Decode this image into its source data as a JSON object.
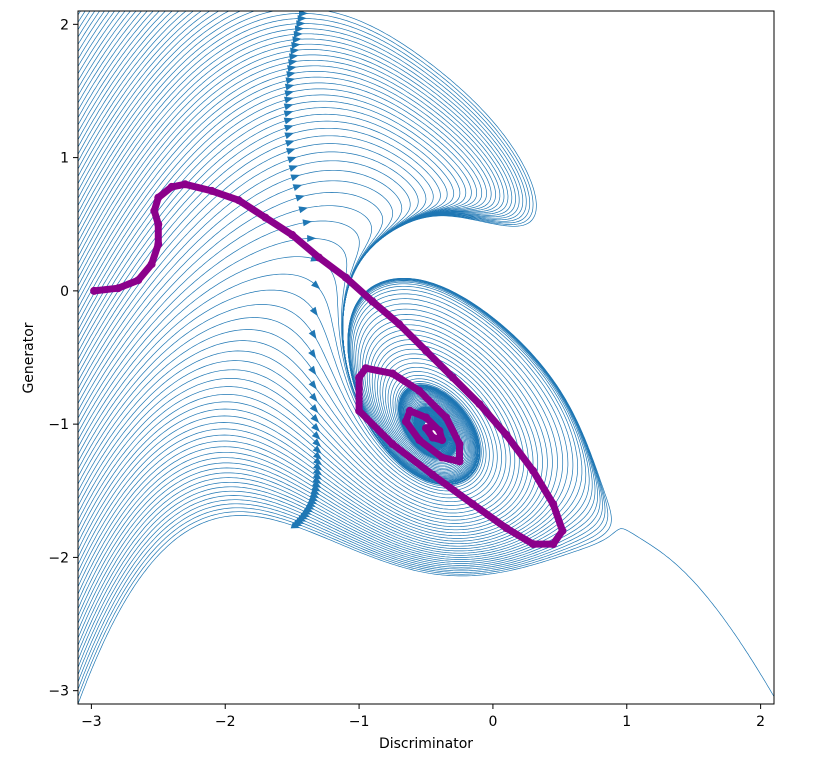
{
  "chart_data": {
    "type": "streamplot",
    "xlabel": "Discriminator",
    "ylabel": "Generator",
    "xlim": [
      -3.1,
      2.1
    ],
    "ylim": [
      -3.1,
      2.1
    ],
    "x_ticks": [
      -3,
      -2,
      -1,
      0,
      1,
      2
    ],
    "y_ticks": [
      -3,
      -2,
      -1,
      0,
      1,
      2
    ],
    "x_tick_labels": [
      "−3",
      "−2",
      "−1",
      "0",
      "1",
      "2"
    ],
    "y_tick_labels": [
      "−3",
      "−2",
      "−1",
      "0",
      "1",
      "2"
    ],
    "grid": false,
    "stream_color": "#1f77b4",
    "trajectory_color": "#8b008b",
    "trajectory": [
      [
        -2.98,
        0.0
      ],
      [
        -2.8,
        0.02
      ],
      [
        -2.65,
        0.08
      ],
      [
        -2.55,
        0.2
      ],
      [
        -2.5,
        0.35
      ],
      [
        -2.5,
        0.5
      ],
      [
        -2.53,
        0.6
      ],
      [
        -2.5,
        0.7
      ],
      [
        -2.4,
        0.78
      ],
      [
        -2.3,
        0.8
      ],
      [
        -2.1,
        0.75
      ],
      [
        -1.9,
        0.68
      ],
      [
        -1.7,
        0.55
      ],
      [
        -1.5,
        0.42
      ],
      [
        -1.3,
        0.25
      ],
      [
        -1.1,
        0.1
      ],
      [
        -0.9,
        -0.08
      ],
      [
        -0.7,
        -0.25
      ],
      [
        -0.5,
        -0.45
      ],
      [
        -0.3,
        -0.65
      ],
      [
        -0.1,
        -0.85
      ],
      [
        0.1,
        -1.08
      ],
      [
        0.3,
        -1.35
      ],
      [
        0.45,
        -1.6
      ],
      [
        0.52,
        -1.8
      ],
      [
        0.45,
        -1.9
      ],
      [
        0.3,
        -1.9
      ],
      [
        0.1,
        -1.78
      ],
      [
        -0.15,
        -1.6
      ],
      [
        -0.45,
        -1.38
      ],
      [
        -0.75,
        -1.15
      ],
      [
        -1.0,
        -0.9
      ],
      [
        -1.0,
        -0.65
      ],
      [
        -0.95,
        -0.58
      ],
      [
        -0.75,
        -0.62
      ],
      [
        -0.55,
        -0.75
      ],
      [
        -0.35,
        -0.95
      ],
      [
        -0.25,
        -1.15
      ],
      [
        -0.25,
        -1.28
      ],
      [
        -0.38,
        -1.25
      ],
      [
        -0.55,
        -1.12
      ],
      [
        -0.65,
        -0.98
      ],
      [
        -0.62,
        -0.9
      ],
      [
        -0.5,
        -0.95
      ],
      [
        -0.4,
        -1.05
      ],
      [
        -0.38,
        -1.12
      ],
      [
        -0.45,
        -1.1
      ],
      [
        -0.5,
        -1.03
      ],
      [
        -0.46,
        -1.02
      ]
    ]
  }
}
